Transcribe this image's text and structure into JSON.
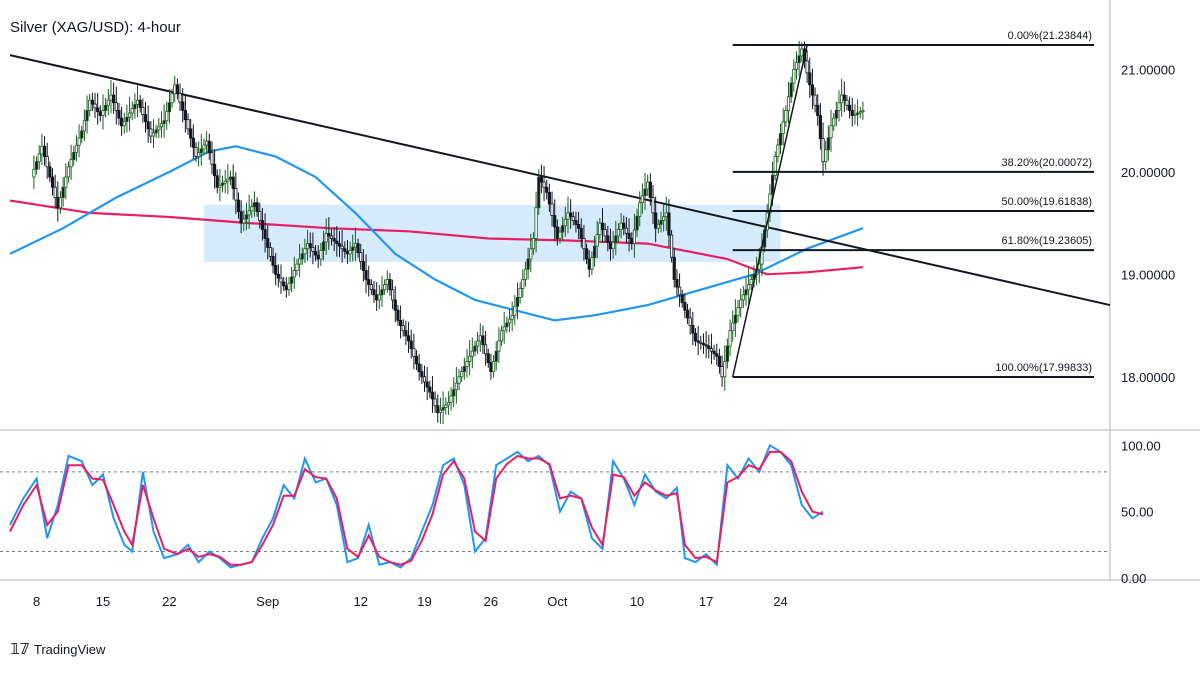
{
  "chart_data": [
    {
      "type": "candlestick",
      "title": "Silver (XAG/USD): 4-hour",
      "timeframe": "4-hour",
      "x_ticks": [
        "8",
        "15",
        "22",
        "Sep",
        "12",
        "19",
        "26",
        "Oct",
        "10",
        "17",
        "24"
      ],
      "y_ticks": [
        "21.00000",
        "20.00000",
        "19.00000",
        "18.00000"
      ],
      "ylim": [
        17.5,
        21.6
      ],
      "path": [
        [
          8,
          19.95
        ],
        [
          12,
          20.25
        ],
        [
          18,
          19.65
        ],
        [
          22,
          20.05
        ],
        [
          27,
          20.4
        ],
        [
          30,
          20.7
        ],
        [
          34,
          20.55
        ],
        [
          38,
          20.75
        ],
        [
          42,
          20.45
        ],
        [
          48,
          20.7
        ],
        [
          53,
          20.35
        ],
        [
          58,
          20.5
        ],
        [
          62,
          20.85
        ],
        [
          65,
          20.6
        ],
        [
          70,
          20.15
        ],
        [
          74,
          20.3
        ],
        [
          78,
          19.85
        ],
        [
          83,
          19.95
        ],
        [
          87,
          19.5
        ],
        [
          92,
          19.7
        ],
        [
          96,
          19.35
        ],
        [
          100,
          19.0
        ],
        [
          104,
          18.85
        ],
        [
          108,
          19.1
        ],
        [
          112,
          19.3
        ],
        [
          116,
          19.15
        ],
        [
          119,
          19.4
        ],
        [
          123,
          19.3
        ],
        [
          127,
          19.2
        ],
        [
          130,
          19.3
        ],
        [
          134,
          18.95
        ],
        [
          138,
          18.75
        ],
        [
          142,
          18.95
        ],
        [
          146,
          18.55
        ],
        [
          150,
          18.35
        ],
        [
          154,
          18.05
        ],
        [
          158,
          17.85
        ],
        [
          161,
          17.65
        ],
        [
          165,
          17.75
        ],
        [
          169,
          18.0
        ],
        [
          173,
          18.2
        ],
        [
          177,
          18.4
        ],
        [
          181,
          18.05
        ],
        [
          185,
          18.45
        ],
        [
          189,
          18.6
        ],
        [
          193,
          18.95
        ],
        [
          197,
          19.35
        ],
        [
          199,
          19.95
        ],
        [
          202,
          19.8
        ],
        [
          206,
          19.35
        ],
        [
          210,
          19.6
        ],
        [
          214,
          19.45
        ],
        [
          218,
          19.05
        ],
        [
          222,
          19.5
        ],
        [
          226,
          19.25
        ],
        [
          230,
          19.5
        ],
        [
          234,
          19.3
        ],
        [
          237,
          19.7
        ],
        [
          240,
          19.9
        ],
        [
          243,
          19.45
        ],
        [
          247,
          19.6
        ],
        [
          250,
          18.95
        ],
        [
          254,
          18.65
        ],
        [
          258,
          18.35
        ],
        [
          262,
          18.3
        ],
        [
          266,
          18.2
        ],
        [
          268,
          18.0
        ],
        [
          271,
          18.45
        ],
        [
          275,
          18.75
        ],
        [
          278,
          18.9
        ],
        [
          282,
          19.1
        ],
        [
          285,
          19.6
        ],
        [
          288,
          20.15
        ],
        [
          292,
          20.6
        ],
        [
          295,
          21.0
        ],
        [
          298,
          21.2
        ],
        [
          301,
          20.85
        ],
        [
          304,
          20.55
        ],
        [
          306,
          20.1
        ],
        [
          309,
          20.45
        ],
        [
          313,
          20.75
        ],
        [
          317,
          20.55
        ],
        [
          321,
          20.6
        ]
      ],
      "series": [
        {
          "type": "line",
          "color": "#e91e63",
          "points": [
            [
              0,
              19.72
            ],
            [
              30,
              19.6
            ],
            [
              60,
              19.56
            ],
            [
              90,
              19.5
            ],
            [
              120,
              19.45
            ],
            [
              150,
              19.42
            ],
            [
              180,
              19.35
            ],
            [
              210,
              19.33
            ],
            [
              240,
              19.3
            ],
            [
              270,
              19.15
            ],
            [
              285,
              19.0
            ],
            [
              300,
              19.02
            ],
            [
              321,
              19.07
            ]
          ]
        },
        {
          "type": "line",
          "color": "#2196f3",
          "points": [
            [
              0,
              19.2
            ],
            [
              20,
              19.45
            ],
            [
              40,
              19.75
            ],
            [
              60,
              20.0
            ],
            [
              75,
              20.2
            ],
            [
              85,
              20.25
            ],
            [
              100,
              20.15
            ],
            [
              115,
              19.95
            ],
            [
              130,
              19.6
            ],
            [
              145,
              19.2
            ],
            [
              160,
              18.95
            ],
            [
              175,
              18.75
            ],
            [
              190,
              18.65
            ],
            [
              205,
              18.55
            ],
            [
              220,
              18.6
            ],
            [
              240,
              18.7
            ],
            [
              260,
              18.85
            ],
            [
              280,
              19.0
            ],
            [
              300,
              19.25
            ],
            [
              321,
              19.45
            ]
          ]
        }
      ],
      "trendline": {
        "x": [
          0,
          414
        ],
        "y": [
          21.14,
          18.7
        ]
      },
      "rectangle_zone": {
        "x": [
          73,
          290
        ],
        "y": [
          19.12,
          19.68
        ]
      },
      "fibonacci": {
        "x_start": 272,
        "x_end": 408,
        "levels": [
          {
            "label": "0.00%(21.23844)",
            "price": 21.23844
          },
          {
            "label": "38.20%(20.00072)",
            "price": 20.00072
          },
          {
            "label": "50.00%(19.61838)",
            "price": 19.61838
          },
          {
            "label": "61.80%(19.23605)",
            "price": 19.23605
          },
          {
            "label": "100.00%(17.99833)",
            "price": 17.99833
          }
        ]
      },
      "swing_line": {
        "x": [
          272,
          300
        ],
        "y": [
          17.99833,
          21.23844
        ]
      }
    },
    {
      "type": "line",
      "indicator": "stochastic",
      "y_ticks": [
        "100.00",
        "50.00",
        "0.00"
      ],
      "ylim": [
        0,
        110
      ],
      "reference_lines": [
        80,
        20
      ],
      "series": [
        {
          "color": "#2196f3",
          "points": [
            [
              0,
              40
            ],
            [
              5,
              60
            ],
            [
              10,
              75
            ],
            [
              14,
              30
            ],
            [
              18,
              55
            ],
            [
              22,
              92
            ],
            [
              27,
              88
            ],
            [
              31,
              70
            ],
            [
              35,
              78
            ],
            [
              39,
              45
            ],
            [
              43,
              25
            ],
            [
              46,
              20
            ],
            [
              50,
              80
            ],
            [
              54,
              35
            ],
            [
              58,
              15
            ],
            [
              63,
              18
            ],
            [
              67,
              25
            ],
            [
              71,
              12
            ],
            [
              75,
              20
            ],
            [
              79,
              15
            ],
            [
              83,
              8
            ],
            [
              87,
              10
            ],
            [
              91,
              12
            ],
            [
              95,
              30
            ],
            [
              99,
              45
            ],
            [
              103,
              70
            ],
            [
              107,
              60
            ],
            [
              111,
              90
            ],
            [
              115,
              72
            ],
            [
              119,
              75
            ],
            [
              123,
              55
            ],
            [
              127,
              12
            ],
            [
              131,
              15
            ],
            [
              135,
              40
            ],
            [
              139,
              10
            ],
            [
              143,
              12
            ],
            [
              147,
              8
            ],
            [
              151,
              15
            ],
            [
              155,
              35
            ],
            [
              159,
              55
            ],
            [
              163,
              85
            ],
            [
              167,
              90
            ],
            [
              171,
              70
            ],
            [
              175,
              20
            ],
            [
              179,
              30
            ],
            [
              183,
              85
            ],
            [
              187,
              90
            ],
            [
              191,
              95
            ],
            [
              195,
              88
            ],
            [
              199,
              92
            ],
            [
              203,
              85
            ],
            [
              207,
              50
            ],
            [
              211,
              65
            ],
            [
              215,
              60
            ],
            [
              219,
              30
            ],
            [
              223,
              22
            ],
            [
              227,
              88
            ],
            [
              231,
              75
            ],
            [
              235,
              55
            ],
            [
              239,
              78
            ],
            [
              243,
              65
            ],
            [
              247,
              60
            ],
            [
              251,
              68
            ],
            [
              254,
              15
            ],
            [
              258,
              12
            ],
            [
              262,
              18
            ],
            [
              266,
              10
            ],
            [
              270,
              85
            ],
            [
              274,
              75
            ],
            [
              278,
              90
            ],
            [
              282,
              80
            ],
            [
              286,
              100
            ],
            [
              290,
              95
            ],
            [
              294,
              85
            ],
            [
              298,
              55
            ],
            [
              302,
              45
            ],
            [
              306,
              50
            ]
          ]
        },
        {
          "color": "#e91e63",
          "points": [
            [
              0,
              35
            ],
            [
              5,
              55
            ],
            [
              10,
              70
            ],
            [
              14,
              40
            ],
            [
              18,
              50
            ],
            [
              22,
              85
            ],
            [
              27,
              85
            ],
            [
              31,
              75
            ],
            [
              35,
              74
            ],
            [
              39,
              55
            ],
            [
              43,
              35
            ],
            [
              46,
              25
            ],
            [
              50,
              70
            ],
            [
              54,
              45
            ],
            [
              58,
              22
            ],
            [
              63,
              18
            ],
            [
              67,
              22
            ],
            [
              71,
              16
            ],
            [
              75,
              18
            ],
            [
              79,
              16
            ],
            [
              83,
              10
            ],
            [
              87,
              10
            ],
            [
              91,
              12
            ],
            [
              95,
              25
            ],
            [
              99,
              40
            ],
            [
              103,
              62
            ],
            [
              107,
              62
            ],
            [
              111,
              82
            ],
            [
              115,
              76
            ],
            [
              119,
              75
            ],
            [
              123,
              60
            ],
            [
              127,
              22
            ],
            [
              131,
              16
            ],
            [
              135,
              32
            ],
            [
              139,
              16
            ],
            [
              143,
              12
            ],
            [
              147,
              10
            ],
            [
              151,
              13
            ],
            [
              155,
              28
            ],
            [
              159,
              48
            ],
            [
              163,
              78
            ],
            [
              167,
              88
            ],
            [
              171,
              75
            ],
            [
              175,
              35
            ],
            [
              179,
              28
            ],
            [
              183,
              75
            ],
            [
              187,
              86
            ],
            [
              191,
              92
            ],
            [
              195,
              90
            ],
            [
              199,
              90
            ],
            [
              203,
              86
            ],
            [
              207,
              60
            ],
            [
              211,
              62
            ],
            [
              215,
              60
            ],
            [
              219,
              38
            ],
            [
              223,
              25
            ],
            [
              227,
              78
            ],
            [
              231,
              76
            ],
            [
              235,
              62
            ],
            [
              239,
              72
            ],
            [
              243,
              66
            ],
            [
              247,
              62
            ],
            [
              251,
              64
            ],
            [
              254,
              25
            ],
            [
              258,
              15
            ],
            [
              262,
              16
            ],
            [
              266,
              12
            ],
            [
              270,
              72
            ],
            [
              274,
              76
            ],
            [
              278,
              85
            ],
            [
              282,
              82
            ],
            [
              286,
              95
            ],
            [
              290,
              95
            ],
            [
              294,
              88
            ],
            [
              298,
              65
            ],
            [
              302,
              50
            ],
            [
              306,
              48
            ]
          ]
        }
      ]
    }
  ],
  "footer": {
    "brand": "TradingView"
  }
}
